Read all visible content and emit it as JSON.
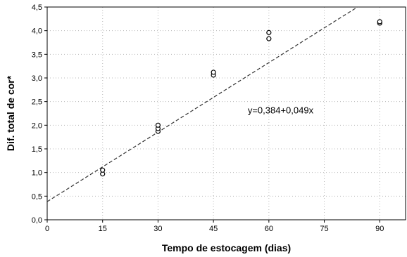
{
  "chart_data": {
    "type": "scatter",
    "title": "",
    "xlabel": "Tempo de estocagem (dias)",
    "ylabel": "Dif. total de cor*",
    "xlim": [
      0,
      97
    ],
    "ylim": [
      0,
      4.5
    ],
    "xticks": [
      0,
      15,
      30,
      45,
      60,
      75,
      90
    ],
    "yticks": [
      0.0,
      0.5,
      1.0,
      1.5,
      2.0,
      2.5,
      3.0,
      3.5,
      4.0,
      4.5
    ],
    "xtick_labels": [
      "0",
      "15",
      "30",
      "45",
      "60",
      "75",
      "90"
    ],
    "ytick_labels": [
      "0,0",
      "0,5",
      "1,0",
      "1,5",
      "2,0",
      "2,5",
      "3,0",
      "3,5",
      "4,0",
      "4,5"
    ],
    "grid": true,
    "series": [
      {
        "points": [
          {
            "x": 15,
            "y": 0.97
          },
          {
            "x": 15,
            "y": 1.05
          },
          {
            "x": 30,
            "y": 1.87
          },
          {
            "x": 30,
            "y": 1.93
          },
          {
            "x": 30,
            "y": 2.0
          },
          {
            "x": 45,
            "y": 3.06
          },
          {
            "x": 45,
            "y": 3.12
          },
          {
            "x": 60,
            "y": 3.83
          },
          {
            "x": 60,
            "y": 3.96
          },
          {
            "x": 90,
            "y": 4.16
          },
          {
            "x": 90,
            "y": 4.19
          }
        ]
      }
    ],
    "fit": {
      "intercept": 0.384,
      "slope": 0.049,
      "equation_label": "y=0,384+0,049x",
      "equation_at": {
        "x": 60,
        "y": 2.25
      }
    }
  }
}
